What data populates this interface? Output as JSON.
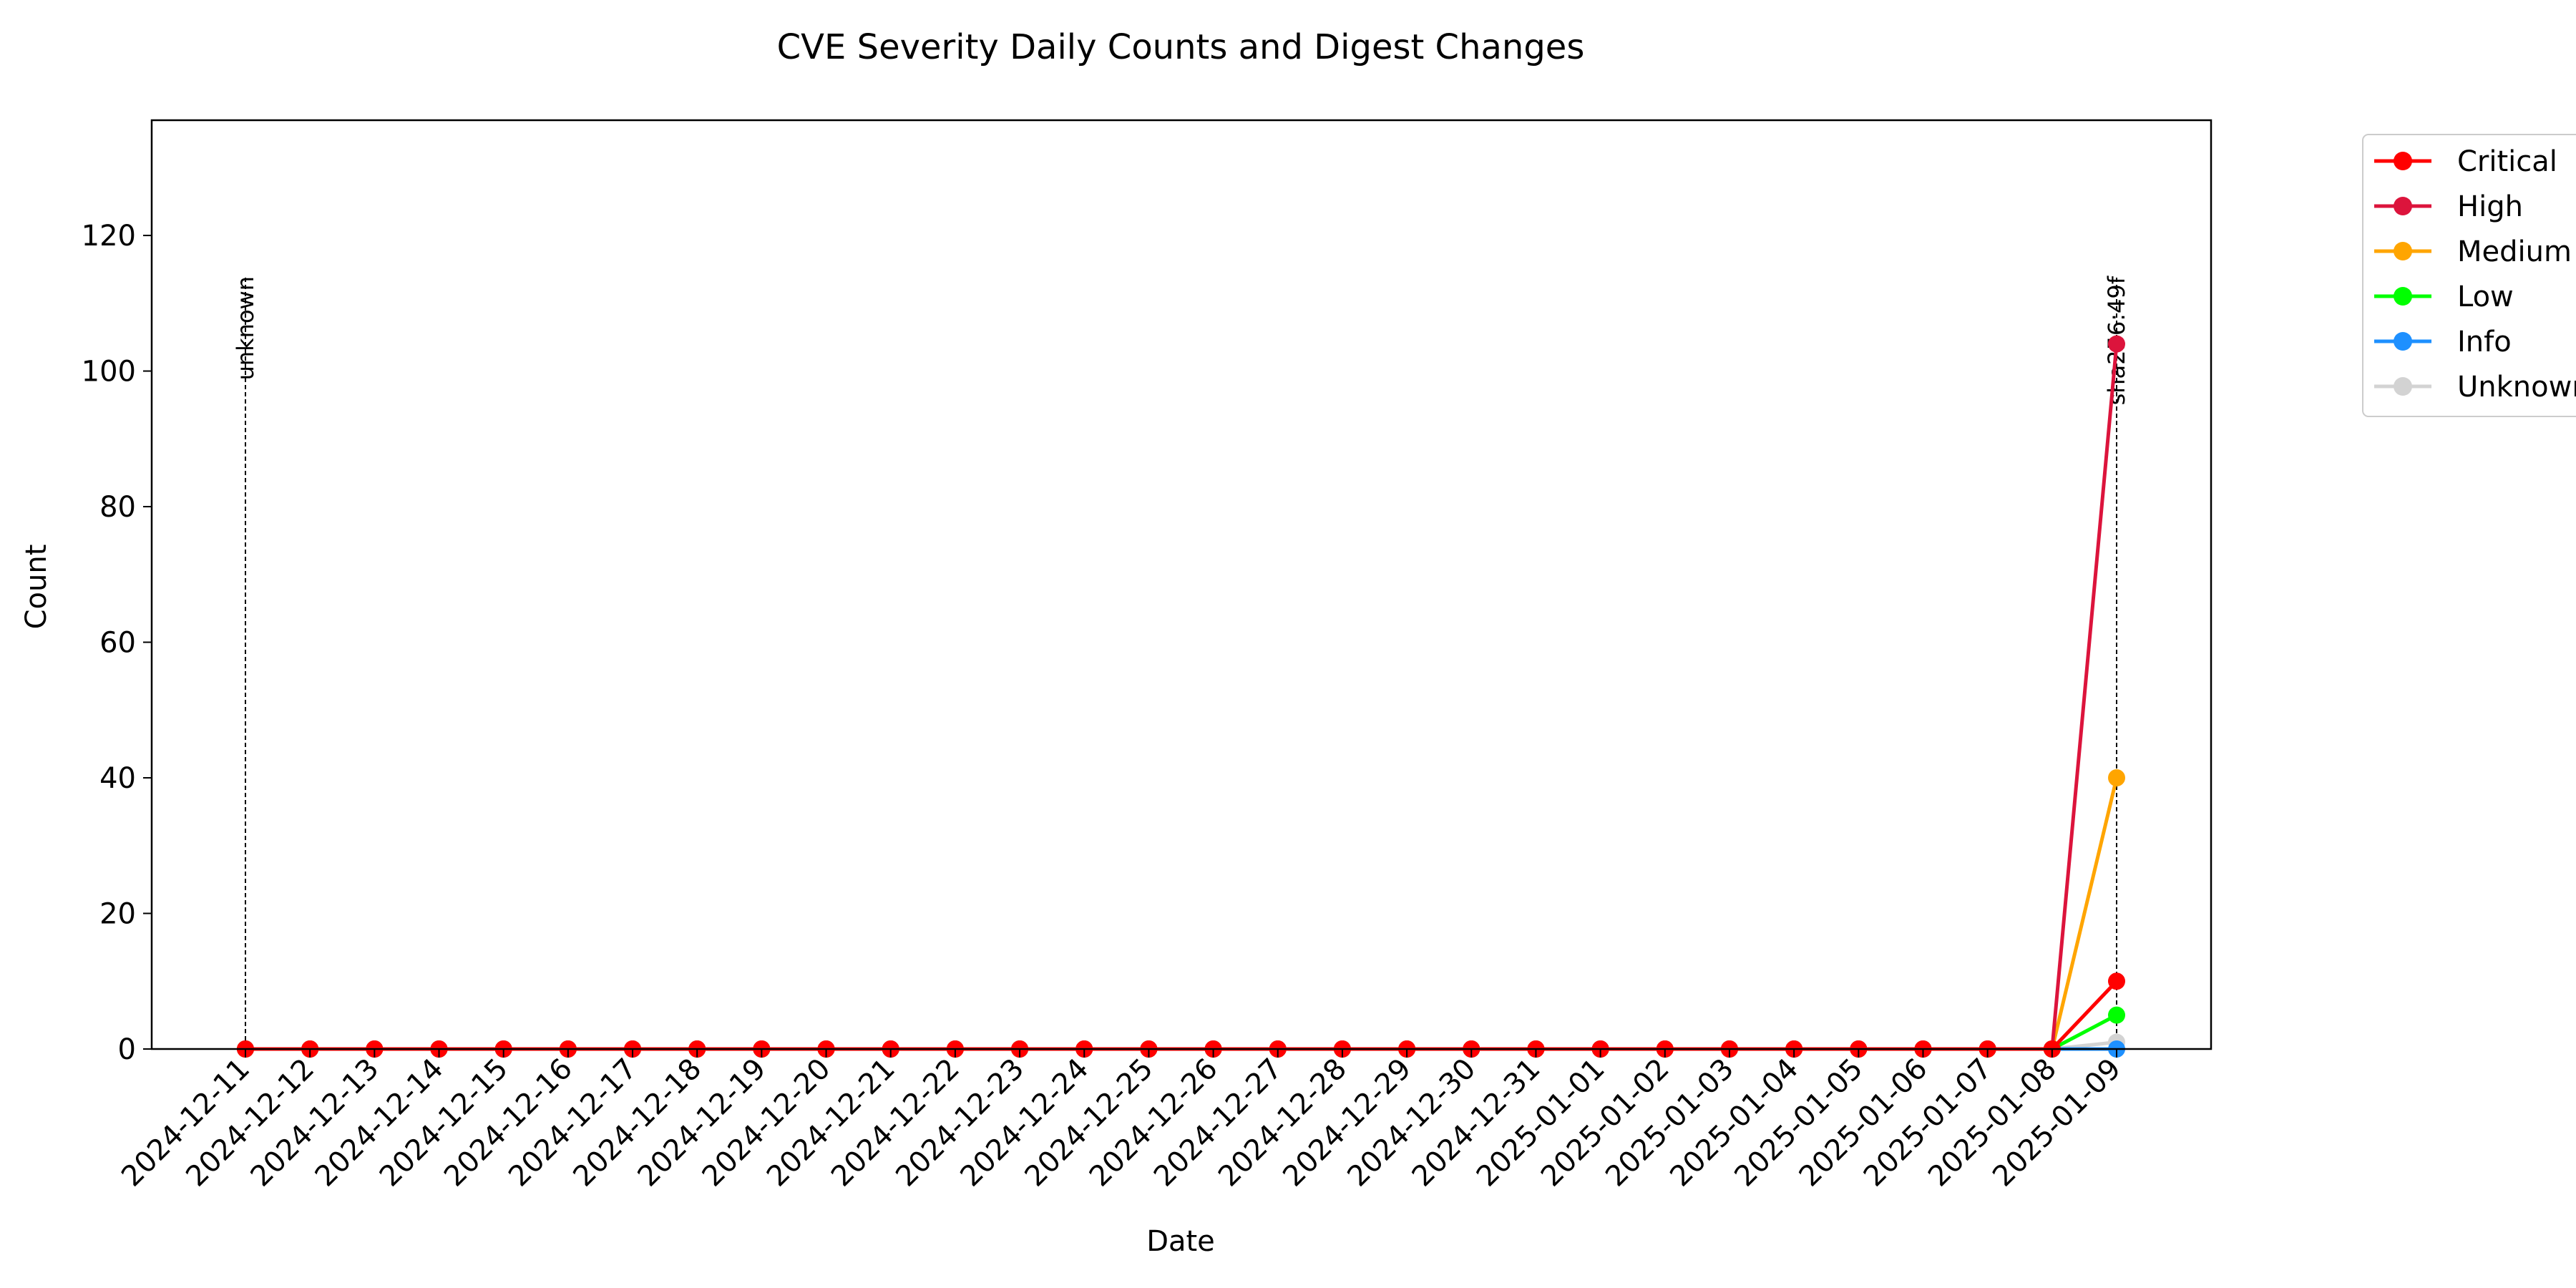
{
  "chart_data": {
    "type": "line",
    "title": "CVE Severity Daily Counts and Digest Changes",
    "xlabel": "Date",
    "ylabel": "Count",
    "x": [
      "2024-12-11",
      "2024-12-12",
      "2024-12-13",
      "2024-12-14",
      "2024-12-15",
      "2024-12-16",
      "2024-12-17",
      "2024-12-18",
      "2024-12-19",
      "2024-12-20",
      "2024-12-21",
      "2024-12-22",
      "2024-12-23",
      "2024-12-24",
      "2024-12-25",
      "2024-12-26",
      "2024-12-27",
      "2024-12-28",
      "2024-12-29",
      "2024-12-30",
      "2024-12-31",
      "2025-01-01",
      "2025-01-02",
      "2025-01-03",
      "2025-01-04",
      "2025-01-05",
      "2025-01-06",
      "2025-01-07",
      "2025-01-08",
      "2025-01-09"
    ],
    "ylim": [
      0,
      137
    ],
    "yticks": [
      0,
      20,
      40,
      60,
      80,
      100,
      120
    ],
    "grid": false,
    "legend_position": "outside-right-top",
    "series": [
      {
        "name": "Critical",
        "color": "#ff0000",
        "values": [
          0,
          0,
          0,
          0,
          0,
          0,
          0,
          0,
          0,
          0,
          0,
          0,
          0,
          0,
          0,
          0,
          0,
          0,
          0,
          0,
          0,
          0,
          0,
          0,
          0,
          0,
          0,
          0,
          0,
          10
        ]
      },
      {
        "name": "High",
        "color": "#dc143c",
        "values": [
          0,
          0,
          0,
          0,
          0,
          0,
          0,
          0,
          0,
          0,
          0,
          0,
          0,
          0,
          0,
          0,
          0,
          0,
          0,
          0,
          0,
          0,
          0,
          0,
          0,
          0,
          0,
          0,
          0,
          104
        ]
      },
      {
        "name": "Medium",
        "color": "#ffa500",
        "values": [
          0,
          0,
          0,
          0,
          0,
          0,
          0,
          0,
          0,
          0,
          0,
          0,
          0,
          0,
          0,
          0,
          0,
          0,
          0,
          0,
          0,
          0,
          0,
          0,
          0,
          0,
          0,
          0,
          0,
          40
        ]
      },
      {
        "name": "Low",
        "color": "#00ff00",
        "values": [
          0,
          0,
          0,
          0,
          0,
          0,
          0,
          0,
          0,
          0,
          0,
          0,
          0,
          0,
          0,
          0,
          0,
          0,
          0,
          0,
          0,
          0,
          0,
          0,
          0,
          0,
          0,
          0,
          0,
          5
        ]
      },
      {
        "name": "Info",
        "color": "#1e90ff",
        "values": [
          0,
          0,
          0,
          0,
          0,
          0,
          0,
          0,
          0,
          0,
          0,
          0,
          0,
          0,
          0,
          0,
          0,
          0,
          0,
          0,
          0,
          0,
          0,
          0,
          0,
          0,
          0,
          0,
          0,
          0
        ]
      },
      {
        "name": "Unknown",
        "color": "#d3d3d3",
        "values": [
          0,
          0,
          0,
          0,
          0,
          0,
          0,
          0,
          0,
          0,
          0,
          0,
          0,
          0,
          0,
          0,
          0,
          0,
          0,
          0,
          0,
          0,
          0,
          0,
          0,
          0,
          0,
          0,
          0,
          1
        ]
      }
    ],
    "annotations": [
      {
        "x": "2024-12-11",
        "label": "unknown"
      },
      {
        "x": "2025-01-09",
        "label": "sha256:49f"
      }
    ]
  }
}
